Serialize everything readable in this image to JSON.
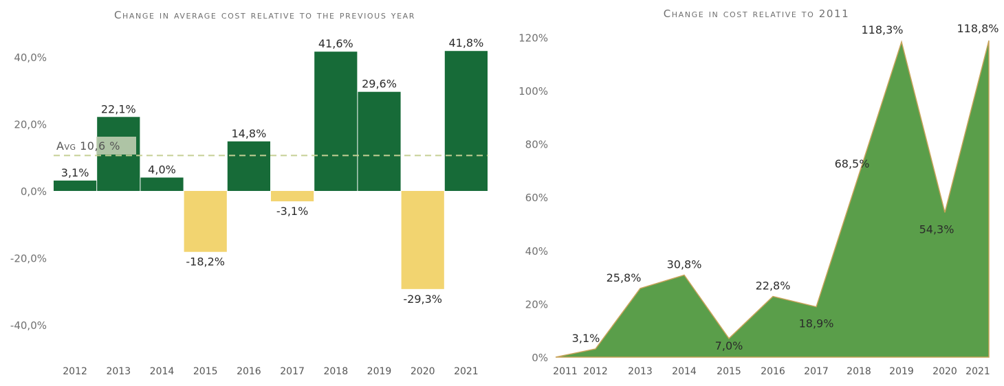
{
  "chart_data": [
    {
      "type": "bar",
      "title": "Change in average cost relative to the previous year",
      "categories": [
        "2012",
        "2013",
        "2014",
        "2015",
        "2016",
        "2017",
        "2018",
        "2019",
        "2020",
        "2021"
      ],
      "values": [
        3.1,
        22.1,
        4.0,
        -18.2,
        14.8,
        -3.1,
        41.6,
        29.6,
        -29.3,
        41.8
      ],
      "value_labels": [
        "3,1%",
        "22,1%",
        "4,0%",
        "-18,2%",
        "14,8%",
        "-3,1%",
        "41,6%",
        "29,6%",
        "-29,3%",
        "41,8%"
      ],
      "y_ticks": [
        40,
        20,
        0,
        -20,
        -40
      ],
      "y_tick_labels": [
        "40,0%",
        "20,0%",
        "0,0%",
        "-20,0%",
        "-40,0%"
      ],
      "ylim": [
        -50,
        50
      ],
      "average": {
        "value": 10.6,
        "label": "Avg 10,6 %"
      },
      "colors": {
        "positive": "#176b38",
        "negative": "#f2d470",
        "average_line": "#c5cf95"
      },
      "grid": false,
      "legend": "none"
    },
    {
      "type": "area",
      "title": "Change in cost relative to 2011",
      "categories": [
        "2011",
        "2012",
        "2013",
        "2014",
        "2015",
        "2016",
        "2017",
        "2018",
        "2019",
        "2020",
        "2021"
      ],
      "values": [
        0,
        3.1,
        25.8,
        30.8,
        7.0,
        22.8,
        18.9,
        68.5,
        118.3,
        54.3,
        118.8
      ],
      "value_labels": [
        "",
        "3,1%",
        "25,8%",
        "30,8%",
        "7,0%",
        "22,8%",
        "18,9%",
        "68,5%",
        "118,3%",
        "54,3%",
        "118,8%"
      ],
      "y_ticks": [
        120,
        100,
        80,
        60,
        40,
        20,
        0
      ],
      "y_tick_labels": [
        "120%",
        "100%",
        "80%",
        "60%",
        "40%",
        "20%",
        "0%"
      ],
      "ylim": [
        0,
        120
      ],
      "colors": {
        "fill": "#5a9e4a",
        "stroke": "#c8a35a"
      },
      "grid": false,
      "legend": "none"
    }
  ]
}
